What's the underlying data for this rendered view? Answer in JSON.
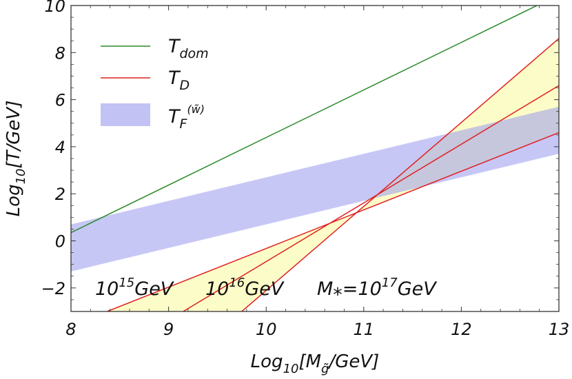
{
  "chart_data": {
    "type": "line",
    "title": "",
    "xlabel": "Log10[Mg~/GeV]",
    "ylabel": "Log10[T/GeV]",
    "xlim": [
      8,
      13
    ],
    "ylim": [
      -3,
      10
    ],
    "x_ticks": [
      8,
      9,
      10,
      11,
      12,
      13
    ],
    "y_ticks": [
      -2,
      0,
      2,
      4,
      6,
      8,
      10
    ],
    "x_tick_labels": [
      "8",
      "9",
      "10",
      "11",
      "12",
      "13"
    ],
    "y_tick_labels": [
      "−2",
      "0",
      "2",
      "4",
      "6",
      "8",
      "10"
    ],
    "x_label_text": {
      "pre": "Log",
      "sub": "10",
      "mid": "[M",
      "msub": "g̃",
      "post": "/GeV]"
    },
    "y_label_text": {
      "pre": "Log",
      "sub": "10",
      "post": "[T/GeV]"
    },
    "series": [
      {
        "name": "T_dom",
        "color": "#2a8a2a",
        "x": [
          8,
          12.8
        ],
        "y": [
          0.35,
          10.05
        ]
      },
      {
        "name": "T_D (M* = 10^15 GeV)",
        "color": "#e01f1f",
        "x": [
          8.37,
          13
        ],
        "y": [
          -3,
          4.6
        ]
      },
      {
        "name": "T_D (M* = 10^16 GeV)",
        "color": "#e01f1f",
        "x": [
          9.15,
          13
        ],
        "y": [
          -3,
          6.6
        ]
      },
      {
        "name": "T_D (M* = 10^17 GeV)",
        "color": "#e01f1f",
        "x": [
          9.75,
          13
        ],
        "y": [
          -3,
          8.6
        ]
      }
    ],
    "bands": [
      {
        "name": "T_F^(w~)",
        "color": "#9999ee",
        "opacity": 0.55,
        "x": [
          8,
          13
        ],
        "lower": [
          -1.3,
          3.7
        ],
        "upper": [
          0.7,
          5.7
        ]
      },
      {
        "name": "Yellow band (10^15 to 10^17 GeV)",
        "color": "#fafaaa",
        "opacity": 0.65,
        "x_lower_start": [
          8.37,
          -3
        ],
        "x_lower_end": [
          13,
          4.6
        ],
        "x_upper_start": [
          9.75,
          -3
        ],
        "x_upper_end": [
          13,
          8.6
        ]
      }
    ],
    "legend": {
      "placement": "top-left",
      "entries": [
        {
          "label_main": "T",
          "label_sub": "dom",
          "label_sup": "",
          "swatch": "line",
          "color": "#2a8a2a"
        },
        {
          "label_main": "T",
          "label_sub": "D",
          "label_sup": "",
          "swatch": "line",
          "color": "#e01f1f"
        },
        {
          "label_main": "T",
          "label_sub": "F",
          "label_sup": "(w̃)",
          "swatch": "patch",
          "color": "#9999ee"
        }
      ]
    },
    "annotations": [
      {
        "base": "10",
        "exp": "15",
        "unit": "GeV",
        "prefix": ""
      },
      {
        "base": "10",
        "exp": "16",
        "unit": "GeV",
        "prefix": ""
      },
      {
        "base": "10",
        "exp": "17",
        "unit": "GeV",
        "prefix": "M⁎="
      }
    ],
    "grid": false
  }
}
